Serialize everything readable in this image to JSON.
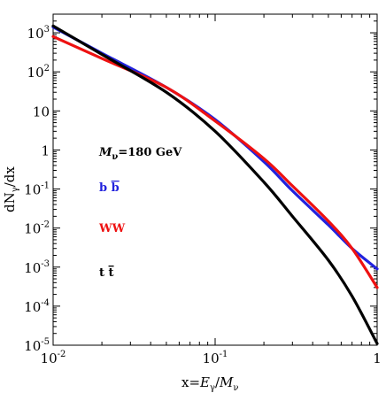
{
  "chart_data": {
    "type": "line",
    "xscale": "log",
    "yscale": "log",
    "xlim": [
      0.01,
      1
    ],
    "ylim": [
      1e-05,
      3000
    ],
    "grid": false,
    "xticks": [
      {
        "value": 0.01,
        "base": "10",
        "exp": "-2"
      },
      {
        "value": 0.1,
        "base": "10",
        "exp": "-1"
      },
      {
        "value": 1,
        "base": "1",
        "exp": ""
      }
    ],
    "yticks": [
      {
        "value": 1e-05,
        "base": "10",
        "exp": "-5"
      },
      {
        "value": 0.0001,
        "base": "10",
        "exp": "-4"
      },
      {
        "value": 0.001,
        "base": "10",
        "exp": "-3"
      },
      {
        "value": 0.01,
        "base": "10",
        "exp": "-2"
      },
      {
        "value": 0.1,
        "base": "10",
        "exp": "-1"
      },
      {
        "value": 1,
        "base": "1",
        "exp": ""
      },
      {
        "value": 10,
        "base": "10",
        "exp": ""
      },
      {
        "value": 100,
        "base": "10",
        "exp": "2"
      },
      {
        "value": 1000,
        "base": "10",
        "exp": "3"
      }
    ],
    "xlabel": {
      "main": "x=",
      "math": "E",
      "sub1": "γ",
      "slash": "/",
      "math2": "M",
      "sub2": "ν"
    },
    "ylabel": {
      "main": "dN",
      "sub": "γ",
      "rest": "/dx"
    },
    "annotation": {
      "main": "M",
      "sub": "ν",
      "rest": "=180 GeV"
    },
    "series": [
      {
        "name": "b b̄",
        "color": "#2222dd",
        "x": [
          0.01,
          0.02,
          0.05,
          0.1,
          0.2,
          0.3,
          0.5,
          0.7,
          1.0
        ],
        "y": [
          1400,
          300,
          40,
          6.0,
          0.5,
          0.09,
          0.012,
          0.003,
          0.0009
        ]
      },
      {
        "name": "WW",
        "color": "#ee1111",
        "x": [
          0.01,
          0.02,
          0.05,
          0.1,
          0.2,
          0.3,
          0.5,
          0.7,
          1.0
        ],
        "y": [
          800,
          220,
          40,
          5.5,
          0.6,
          0.12,
          0.015,
          0.003,
          0.0003
        ]
      },
      {
        "name": "t t̄",
        "color": "#000000",
        "x": [
          0.01,
          0.02,
          0.05,
          0.1,
          0.2,
          0.3,
          0.5,
          0.7,
          1.0
        ],
        "y": [
          1500,
          280,
          30,
          3.0,
          0.15,
          0.02,
          0.0015,
          0.00018,
          1.1e-05
        ]
      }
    ],
    "legend_entries": [
      {
        "text": "b",
        "over": "b",
        "color": "#2222dd"
      },
      {
        "text": "WW",
        "over": "",
        "color": "#ee1111"
      },
      {
        "text": "t",
        "over": "t",
        "color": "#000000"
      }
    ]
  }
}
